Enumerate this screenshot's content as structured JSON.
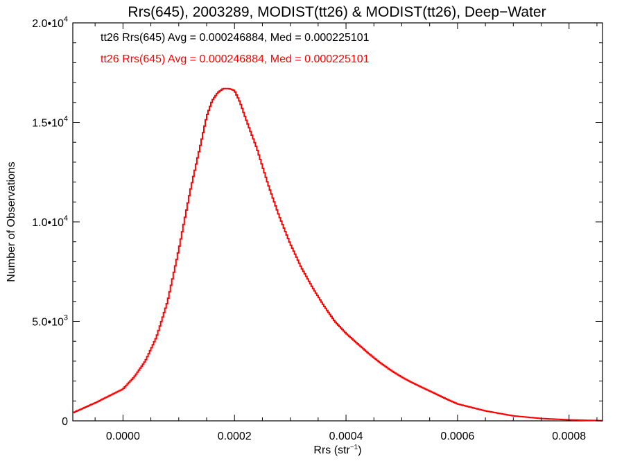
{
  "chart_data": {
    "type": "line",
    "style": "step-histogram",
    "title": "Rrs(645), 2003289, MODIST(tt26) & MODIST(tt26), Deep−Water",
    "xlabel_main": "Rrs (str",
    "xlabel_sup": "−1",
    "xlabel_tail": ")",
    "ylabel": "Number of Observations",
    "xlim": [
      -9e-05,
      0.00086
    ],
    "ylim": [
      0,
      20000
    ],
    "x_ticks": [
      {
        "value": 0.0,
        "label": "0.0000"
      },
      {
        "value": 0.0002,
        "label": "0.0002"
      },
      {
        "value": 0.0004,
        "label": "0.0004"
      },
      {
        "value": 0.0006,
        "label": "0.0006"
      },
      {
        "value": 0.0008,
        "label": "0.0008"
      }
    ],
    "y_ticks": [
      {
        "value": 0,
        "label": "0",
        "sup": ""
      },
      {
        "value": 5000,
        "label": "5.0•10",
        "sup": "3"
      },
      {
        "value": 10000,
        "label": "1.0•10",
        "sup": "4"
      },
      {
        "value": 15000,
        "label": "1.5•10",
        "sup": "4"
      },
      {
        "value": 20000,
        "label": "2.0•10",
        "sup": "4"
      }
    ],
    "annotations": [
      {
        "text": "tt26 Rrs(645) Avg = 0.000246884, Med = 0.000225101",
        "color": "#000000"
      },
      {
        "text": "tt26 Rrs(645) Avg = 0.000246884, Med = 0.000225101",
        "color": "#ff0000"
      }
    ],
    "series": [
      {
        "color": "#ff0000",
        "x": [
          -9e-05,
          -5e-05,
          0.0,
          2e-05,
          4e-05,
          6e-05,
          8e-05,
          0.0001,
          0.00012,
          0.00014,
          0.00015,
          0.00016,
          0.00017,
          0.00018,
          0.00019,
          0.0002,
          0.00021,
          0.00022,
          0.00024,
          0.00026,
          0.00028,
          0.0003,
          0.00032,
          0.00034,
          0.00036,
          0.00038,
          0.0004,
          0.00042,
          0.00044,
          0.00046,
          0.00048,
          0.0005,
          0.00052,
          0.00055,
          0.00058,
          0.0006,
          0.00065,
          0.0007,
          0.00075,
          0.0008,
          0.00086
        ],
        "y": [
          400,
          900,
          1600,
          2200,
          3000,
          4200,
          6000,
          8600,
          11500,
          14000,
          15300,
          16100,
          16500,
          16700,
          16700,
          16600,
          16000,
          15200,
          13700,
          11900,
          10300,
          8900,
          7700,
          6700,
          5800,
          5000,
          4400,
          3900,
          3400,
          2950,
          2550,
          2200,
          1900,
          1500,
          1100,
          850,
          500,
          250,
          120,
          50,
          10
        ]
      }
    ]
  }
}
